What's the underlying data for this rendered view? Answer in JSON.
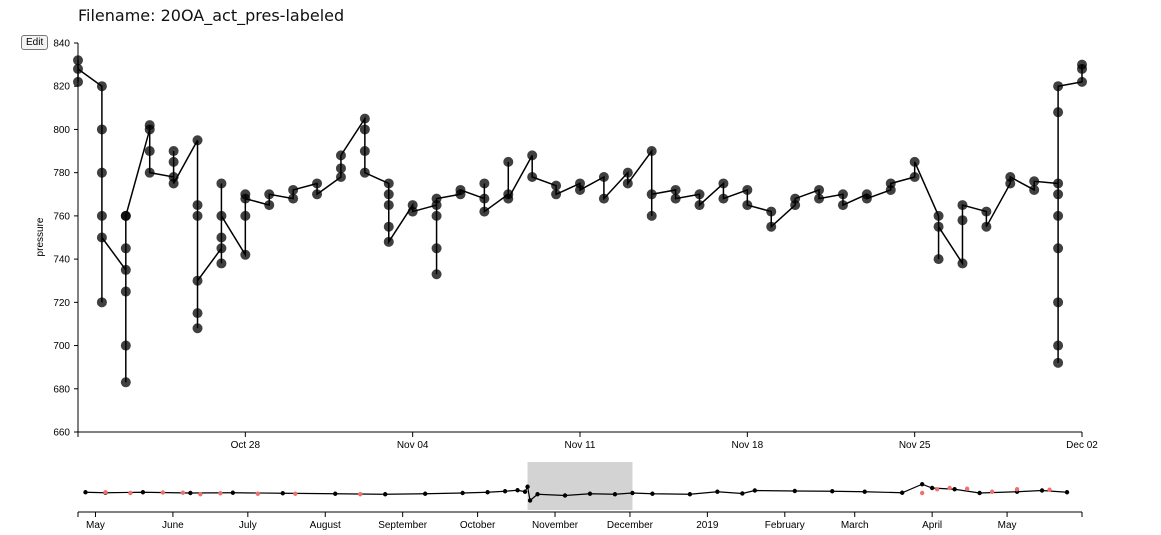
{
  "header": {
    "title": "Filename: 20OA_act_pres-labeled"
  },
  "controls": {
    "edit_label": "Edit"
  },
  "chart_data": [
    {
      "type": "scatter",
      "role": "focus",
      "ylabel": "pressure",
      "ylim": [
        660,
        840
      ],
      "yticks": [
        "660",
        "680",
        "700",
        "720",
        "740",
        "760",
        "780",
        "800",
        "820",
        "840"
      ],
      "xlim": [
        "2018-10-21",
        "2018-12-02"
      ],
      "xtick_labels": [
        {
          "date": "2018-10-21",
          "label": ""
        },
        {
          "date": "2018-10-28",
          "label": "Oct 28"
        },
        {
          "date": "2018-11-04",
          "label": "Nov 04"
        },
        {
          "date": "2018-11-11",
          "label": "Nov 11"
        },
        {
          "date": "2018-11-18",
          "label": "Nov 18"
        },
        {
          "date": "2018-11-25",
          "label": "Nov 25"
        },
        {
          "date": "2018-12-02",
          "label": "Dec 02"
        }
      ],
      "series": [
        {
          "color": "#000000",
          "points": [
            [
              "2018-10-21",
              822
            ],
            [
              "2018-10-21",
              832
            ],
            [
              "2018-10-21",
              828
            ],
            [
              "2018-10-22",
              820
            ],
            [
              "2018-10-22",
              800
            ],
            [
              "2018-10-22",
              760
            ],
            [
              "2018-10-22",
              720
            ],
            [
              "2018-10-22",
              780
            ],
            [
              "2018-10-22",
              750
            ],
            [
              "2018-10-23",
              735
            ],
            [
              "2018-10-23",
              760
            ],
            [
              "2018-10-23",
              745
            ],
            [
              "2018-10-23",
              700
            ],
            [
              "2018-10-23",
              683
            ],
            [
              "2018-10-23",
              725
            ],
            [
              "2018-10-23",
              760
            ],
            [
              "2018-10-24",
              800
            ],
            [
              "2018-10-24",
              790
            ],
            [
              "2018-10-24",
              802
            ],
            [
              "2018-10-24",
              780
            ],
            [
              "2018-10-25",
              778
            ],
            [
              "2018-10-25",
              790
            ],
            [
              "2018-10-25",
              785
            ],
            [
              "2018-10-25",
              775
            ],
            [
              "2018-10-26",
              795
            ],
            [
              "2018-10-26",
              765
            ],
            [
              "2018-10-26",
              715
            ],
            [
              "2018-10-26",
              708
            ],
            [
              "2018-10-26",
              760
            ],
            [
              "2018-10-26",
              730
            ],
            [
              "2018-10-27",
              745
            ],
            [
              "2018-10-27",
              750
            ],
            [
              "2018-10-27",
              738
            ],
            [
              "2018-10-27",
              775
            ],
            [
              "2018-10-27",
              760
            ],
            [
              "2018-10-28",
              742
            ],
            [
              "2018-10-28",
              770
            ],
            [
              "2018-10-28",
              760
            ],
            [
              "2018-10-28",
              768
            ],
            [
              "2018-10-29",
              765
            ],
            [
              "2018-10-29",
              770
            ],
            [
              "2018-10-30",
              768
            ],
            [
              "2018-10-30",
              772
            ],
            [
              "2018-10-31",
              775
            ],
            [
              "2018-10-31",
              770
            ],
            [
              "2018-11-01",
              778
            ],
            [
              "2018-11-01",
              782
            ],
            [
              "2018-11-01",
              788
            ],
            [
              "2018-11-02",
              805
            ],
            [
              "2018-11-02",
              800
            ],
            [
              "2018-11-02",
              790
            ],
            [
              "2018-11-02",
              780
            ],
            [
              "2018-11-03",
              775
            ],
            [
              "2018-11-03",
              770
            ],
            [
              "2018-11-03",
              755
            ],
            [
              "2018-11-03",
              765
            ],
            [
              "2018-11-03",
              748
            ],
            [
              "2018-11-04",
              765
            ],
            [
              "2018-11-04",
              762
            ],
            [
              "2018-11-05",
              765
            ],
            [
              "2018-11-05",
              760
            ],
            [
              "2018-11-05",
              733
            ],
            [
              "2018-11-05",
              745
            ],
            [
              "2018-11-05",
              768
            ],
            [
              "2018-11-06",
              770
            ],
            [
              "2018-11-06",
              772
            ],
            [
              "2018-11-07",
              768
            ],
            [
              "2018-11-07",
              775
            ],
            [
              "2018-11-07",
              762
            ],
            [
              "2018-11-08",
              770
            ],
            [
              "2018-11-08",
              785
            ],
            [
              "2018-11-08",
              768
            ],
            [
              "2018-11-09",
              788
            ],
            [
              "2018-11-09",
              778
            ],
            [
              "2018-11-10",
              774
            ],
            [
              "2018-11-10",
              770
            ],
            [
              "2018-11-11",
              775
            ],
            [
              "2018-11-11",
              772
            ],
            [
              "2018-11-12",
              778
            ],
            [
              "2018-11-12",
              768
            ],
            [
              "2018-11-13",
              780
            ],
            [
              "2018-11-13",
              775
            ],
            [
              "2018-11-14",
              790
            ],
            [
              "2018-11-14",
              760
            ],
            [
              "2018-11-14",
              770
            ],
            [
              "2018-11-15",
              772
            ],
            [
              "2018-11-15",
              768
            ],
            [
              "2018-11-16",
              770
            ],
            [
              "2018-11-16",
              765
            ],
            [
              "2018-11-17",
              775
            ],
            [
              "2018-11-17",
              768
            ],
            [
              "2018-11-18",
              772
            ],
            [
              "2018-11-18",
              765
            ],
            [
              "2018-11-19",
              762
            ],
            [
              "2018-11-19",
              755
            ],
            [
              "2018-11-20",
              765
            ],
            [
              "2018-11-20",
              768
            ],
            [
              "2018-11-21",
              772
            ],
            [
              "2018-11-21",
              768
            ],
            [
              "2018-11-22",
              770
            ],
            [
              "2018-11-22",
              765
            ],
            [
              "2018-11-23",
              770
            ],
            [
              "2018-11-23",
              768
            ],
            [
              "2018-11-24",
              772
            ],
            [
              "2018-11-24",
              775
            ],
            [
              "2018-11-25",
              778
            ],
            [
              "2018-11-25",
              785
            ],
            [
              "2018-11-26",
              760
            ],
            [
              "2018-11-26",
              740
            ],
            [
              "2018-11-26",
              755
            ],
            [
              "2018-11-27",
              738
            ],
            [
              "2018-11-27",
              758
            ],
            [
              "2018-11-27",
              765
            ],
            [
              "2018-11-28",
              762
            ],
            [
              "2018-11-28",
              755
            ],
            [
              "2018-11-29",
              775
            ],
            [
              "2018-11-29",
              778
            ],
            [
              "2018-11-30",
              772
            ],
            [
              "2018-11-30",
              776
            ],
            [
              "2018-12-01",
              775
            ],
            [
              "2018-12-01",
              770
            ],
            [
              "2018-12-01",
              760
            ],
            [
              "2018-12-01",
              745
            ],
            [
              "2018-12-01",
              720
            ],
            [
              "2018-12-01",
              692
            ],
            [
              "2018-12-01",
              700
            ],
            [
              "2018-12-01",
              808
            ],
            [
              "2018-12-01",
              820
            ],
            [
              "2018-12-02",
              822
            ],
            [
              "2018-12-02",
              828
            ],
            [
              "2018-12-02",
              830
            ]
          ]
        }
      ]
    },
    {
      "type": "scatter",
      "role": "context",
      "ylim": [
        660,
        840
      ],
      "xlim": [
        "2018-04-24",
        "2019-05-31"
      ],
      "xtick_labels": [
        {
          "date": "2018-05-01",
          "label": "May"
        },
        {
          "date": "2018-06-01",
          "label": "June"
        },
        {
          "date": "2018-07-01",
          "label": "July"
        },
        {
          "date": "2018-08-01",
          "label": "August"
        },
        {
          "date": "2018-09-01",
          "label": "September"
        },
        {
          "date": "2018-10-01",
          "label": "October"
        },
        {
          "date": "2018-11-01",
          "label": "November"
        },
        {
          "date": "2018-12-01",
          "label": "December"
        },
        {
          "date": "2019-01-01",
          "label": "2019"
        },
        {
          "date": "2019-02-01",
          "label": "February"
        },
        {
          "date": "2019-03-01",
          "label": "March"
        },
        {
          "date": "2019-04-01",
          "label": "April"
        },
        {
          "date": "2019-05-01",
          "label": "May"
        }
      ],
      "brush": {
        "start": "2018-10-21",
        "end": "2018-12-02",
        "color": "#d3d3d3"
      },
      "series": [
        {
          "color": "#000000",
          "points": [
            [
              "2018-04-27",
              778
            ],
            [
              "2018-05-05",
              776
            ],
            [
              "2018-05-20",
              778
            ],
            [
              "2018-06-08",
              775
            ],
            [
              "2018-06-25",
              776
            ],
            [
              "2018-07-15",
              774
            ],
            [
              "2018-08-05",
              772
            ],
            [
              "2018-08-25",
              770
            ],
            [
              "2018-09-10",
              772
            ],
            [
              "2018-09-25",
              775
            ],
            [
              "2018-10-05",
              778
            ],
            [
              "2018-10-12",
              782
            ],
            [
              "2018-10-17",
              786
            ],
            [
              "2018-10-20",
              780
            ],
            [
              "2018-10-21",
              800
            ],
            [
              "2018-10-22",
              745
            ],
            [
              "2018-10-25",
              770
            ],
            [
              "2018-11-05",
              765
            ],
            [
              "2018-11-15",
              772
            ],
            [
              "2018-11-25",
              770
            ],
            [
              "2018-12-02",
              775
            ],
            [
              "2018-12-10",
              772
            ],
            [
              "2018-12-25",
              770
            ],
            [
              "2019-01-05",
              780
            ],
            [
              "2019-01-15",
              773
            ],
            [
              "2019-01-20",
              785
            ],
            [
              "2019-02-05",
              783
            ],
            [
              "2019-02-20",
              782
            ],
            [
              "2019-03-05",
              780
            ],
            [
              "2019-03-20",
              776
            ],
            [
              "2019-03-28",
              810
            ],
            [
              "2019-04-01",
              795
            ],
            [
              "2019-04-10",
              790
            ],
            [
              "2019-04-20",
              775
            ],
            [
              "2019-05-05",
              780
            ],
            [
              "2019-05-15",
              785
            ],
            [
              "2019-05-25",
              778
            ]
          ]
        },
        {
          "color": "#f07070",
          "points": [
            [
              "2018-05-05",
              778
            ],
            [
              "2018-05-15",
              775
            ],
            [
              "2018-05-28",
              777
            ],
            [
              "2018-06-05",
              776
            ],
            [
              "2018-06-12",
              770
            ],
            [
              "2018-06-20",
              774
            ],
            [
              "2018-07-05",
              772
            ],
            [
              "2018-07-20",
              772
            ],
            [
              "2018-08-15",
              770
            ],
            [
              "2019-03-28",
              775
            ],
            [
              "2019-04-03",
              790
            ],
            [
              "2019-04-08",
              795
            ],
            [
              "2019-04-15",
              792
            ],
            [
              "2019-04-25",
              780
            ],
            [
              "2019-05-05",
              790
            ],
            [
              "2019-05-18",
              788
            ]
          ]
        }
      ]
    }
  ]
}
